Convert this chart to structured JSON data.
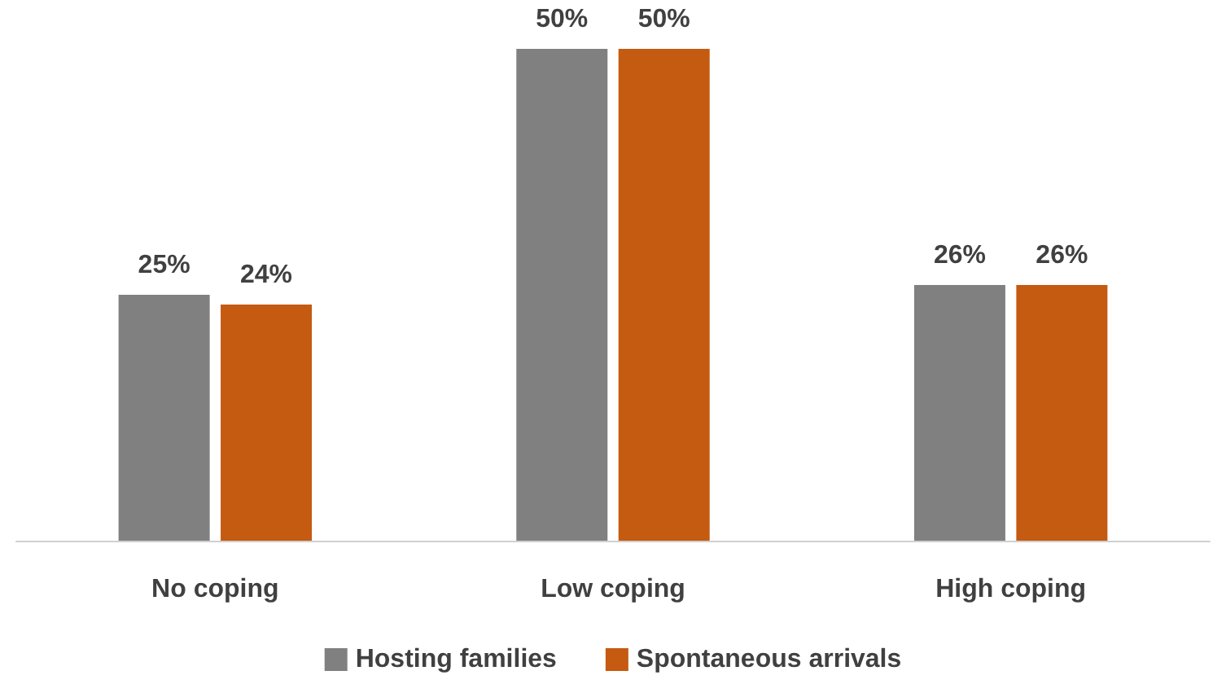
{
  "chart_data": {
    "type": "bar",
    "categories": [
      "No coping",
      "Low coping",
      "High coping"
    ],
    "series": [
      {
        "name": "Hosting families",
        "color": "#808080",
        "values": [
          25,
          50,
          26
        ],
        "value_labels": [
          "25%",
          "50%",
          "26%"
        ]
      },
      {
        "name": "Spontaneous arrivals",
        "color": "#c55a11",
        "values": [
          24,
          50,
          26
        ],
        "value_labels": [
          "24%",
          "50%",
          "26%"
        ]
      }
    ],
    "legend": "bottom",
    "grid": false
  }
}
